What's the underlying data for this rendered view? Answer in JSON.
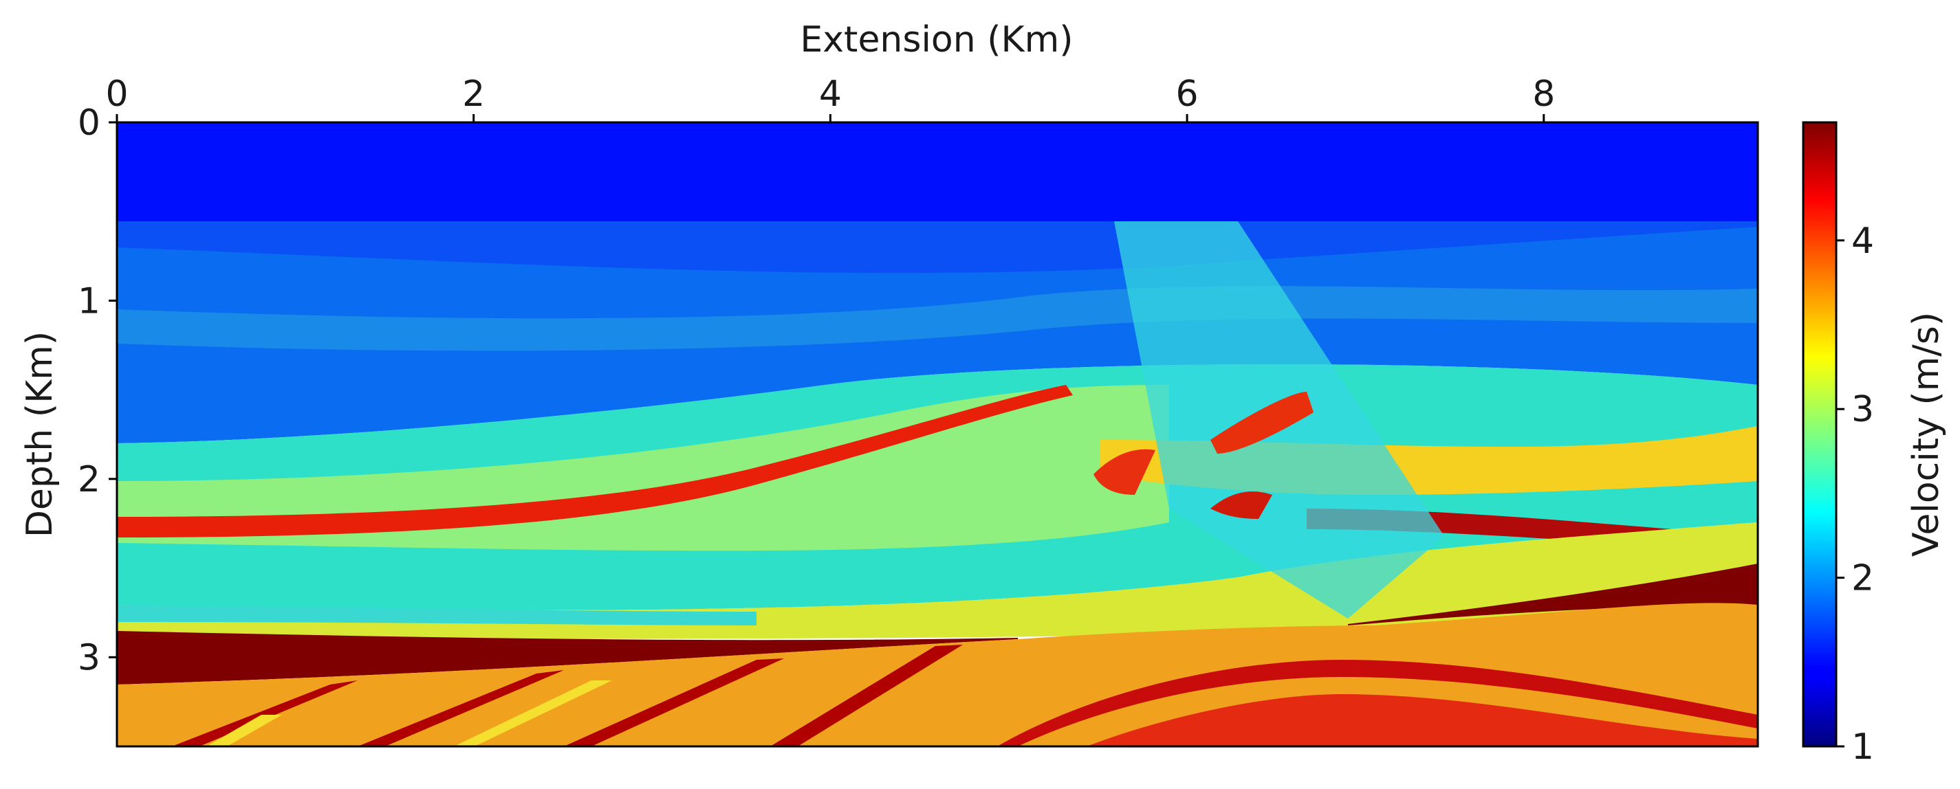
{
  "chart_data": {
    "type": "heatmap",
    "title": "",
    "xlabel": "Extension (Km)",
    "ylabel": "Depth (Km)",
    "xlim": [
      0,
      9.2
    ],
    "ylim": [
      3.5,
      0
    ],
    "x_ticks": [
      0,
      2,
      4,
      6,
      8
    ],
    "y_ticks": [
      0,
      1,
      2,
      3
    ],
    "x_axis_position": "top",
    "grid": false,
    "colormap": "jet",
    "colorbar": {
      "label": "Velocity (m/s)",
      "range": [
        1.0,
        4.7
      ],
      "ticks": [
        1,
        2,
        3,
        4
      ]
    },
    "water_layer": {
      "depth_range": [
        0,
        0.55
      ],
      "velocity": 1.5
    },
    "velocity_layers": [
      {
        "depth_start_km": 0.55,
        "velocity": 1.65
      },
      {
        "depth_start_km": 1.8,
        "velocity": 2.5
      },
      {
        "depth_start_km": 2.25,
        "velocity": 4.2
      },
      {
        "depth_start_km": 2.3,
        "velocity": 2.9
      },
      {
        "depth_start_km": 2.7,
        "velocity": 2.5
      },
      {
        "depth_start_km": 2.85,
        "velocity": 4.7
      },
      {
        "depth_start_km": 3.15,
        "velocity": 3.7
      }
    ]
  }
}
